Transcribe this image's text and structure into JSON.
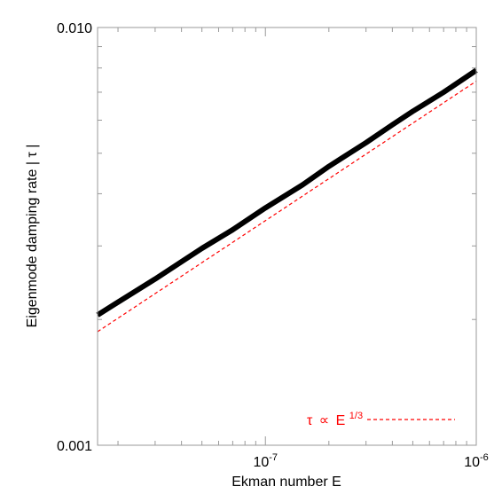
{
  "chart_data": {
    "type": "line",
    "scale": {
      "x": "log",
      "y": "log"
    },
    "xlabel": "Ekman number E",
    "ylabel": "Eigenmode damping rate | τ |",
    "xlim": [
      1.6e-08,
      1e-06
    ],
    "ylim": [
      0.001,
      0.01
    ],
    "x_tick_labels": [
      {
        "value": 1e-07,
        "base": "10",
        "exp": "-7"
      },
      {
        "value": 1e-06,
        "base": "10",
        "exp": "-6"
      }
    ],
    "y_tick_labels": [
      {
        "value": 0.001,
        "text": "0.001"
      },
      {
        "value": 0.01,
        "text": "0.010"
      }
    ],
    "series": [
      {
        "style": "solid",
        "color": "#000000",
        "points": [
          [
            1.6e-08,
            0.00205
          ],
          [
            2e-08,
            0.0022
          ],
          [
            3e-08,
            0.0025
          ],
          [
            4e-08,
            0.00275
          ],
          [
            5e-08,
            0.00296
          ],
          [
            7e-08,
            0.00328
          ],
          [
            1e-07,
            0.0037
          ],
          [
            1.5e-07,
            0.0042
          ],
          [
            2e-07,
            0.00465
          ],
          [
            3e-07,
            0.0053
          ],
          [
            4e-07,
            0.00585
          ],
          [
            5e-07,
            0.0063
          ],
          [
            7e-07,
            0.007
          ],
          [
            1e-06,
            0.0079
          ]
        ]
      },
      {
        "name": "τ ∝ E1/3",
        "style": "dashed",
        "color": "#ff0000",
        "points": [
          [
            1.6e-08,
            0.00187
          ],
          [
            1e-06,
            0.00744
          ]
        ]
      }
    ],
    "legend": {
      "position": "bottom-right",
      "symbol": "τ",
      "relation": "∝",
      "base": "E",
      "exponent": "1/3",
      "color": "#ff0000"
    }
  }
}
